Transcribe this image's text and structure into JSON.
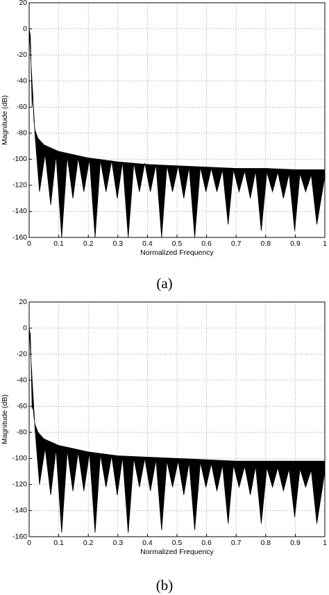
{
  "chart_data": [
    {
      "type": "area",
      "xlabel": "Normalized Frequency",
      "ylabel": "Magnitude (dB)",
      "caption": "(a)",
      "xlim": [
        0,
        1
      ],
      "ylim": [
        -160,
        20
      ],
      "grid": true,
      "xticks": [
        0,
        0.1,
        0.2,
        0.3,
        0.4,
        0.5,
        0.6,
        0.7,
        0.8,
        0.9,
        1
      ],
      "yticks": [
        20,
        0,
        -20,
        -40,
        -60,
        -80,
        -100,
        -120,
        -140,
        -160
      ],
      "series": [
        {
          "color": "#000000",
          "x": [
            0,
            0.004,
            0.008,
            0.01,
            0.012,
            0.016,
            0.02,
            0.03,
            0.05,
            0.1,
            0.2,
            0.3,
            0.4,
            0.5,
            0.6,
            0.7,
            0.8,
            0.9,
            1
          ],
          "values": [
            0,
            -5,
            -40,
            -60,
            -48,
            -70,
            -78,
            -84,
            -89,
            -94,
            -99,
            -102,
            -104,
            -105,
            -106,
            -107,
            -107,
            -108,
            -108
          ]
        },
        {
          "color": "#000000",
          "x": [
            0.02,
            0.035,
            0.054,
            0.073,
            0.091,
            0.11,
            0.129,
            0.148,
            0.166,
            0.185,
            0.204,
            0.223,
            0.241,
            0.26,
            0.279,
            0.298,
            0.316,
            0.335,
            0.354,
            0.373,
            0.391,
            0.41,
            0.429,
            0.448,
            0.466,
            0.485,
            0.504,
            0.523,
            0.541,
            0.56,
            0.579,
            0.598,
            0.616,
            0.635,
            0.654,
            0.673,
            0.691,
            0.71,
            0.729,
            0.748,
            0.766,
            0.785,
            0.804,
            0.823,
            0.841,
            0.86,
            0.879,
            0.898,
            0.916,
            0.935,
            0.954,
            0.973,
            1
          ],
          "values": [
            -82,
            -125,
            -96,
            -135,
            -97,
            -160,
            -98,
            -130,
            -99,
            -125,
            -100,
            -160,
            -101,
            -125,
            -101,
            -130,
            -102,
            -160,
            -103,
            -125,
            -103,
            -125,
            -104,
            -160,
            -105,
            -125,
            -105,
            -130,
            -106,
            -160,
            -106,
            -125,
            -107,
            -125,
            -108,
            -150,
            -108,
            -125,
            -109,
            -130,
            -109,
            -155,
            -110,
            -125,
            -110,
            -130,
            -111,
            -155,
            -111,
            -125,
            -112,
            -150,
            -113
          ]
        }
      ]
    },
    {
      "type": "area",
      "xlabel": "Normalized Frequency",
      "ylabel": "Magnitude (dB)",
      "caption": "(b)",
      "xlim": [
        0,
        1
      ],
      "ylim": [
        -160,
        20
      ],
      "grid": true,
      "xticks": [
        0,
        0.1,
        0.2,
        0.3,
        0.4,
        0.5,
        0.6,
        0.7,
        0.8,
        0.9,
        1
      ],
      "yticks": [
        20,
        0,
        -20,
        -40,
        -60,
        -80,
        -100,
        -120,
        -140,
        -160
      ],
      "series": [
        {
          "color": "#000000",
          "x": [
            0,
            0.004,
            0.008,
            0.01,
            0.012,
            0.016,
            0.02,
            0.03,
            0.05,
            0.1,
            0.2,
            0.3,
            0.4,
            0.5,
            0.6,
            0.7,
            0.8,
            0.9,
            1
          ],
          "values": [
            0,
            -5,
            -40,
            -62,
            -58,
            -68,
            -74,
            -80,
            -85,
            -90,
            -95,
            -98,
            -99,
            -100,
            -101,
            -102,
            -102,
            -102,
            -102
          ]
        },
        {
          "color": "#000000",
          "x": [
            0.02,
            0.035,
            0.054,
            0.073,
            0.091,
            0.11,
            0.129,
            0.148,
            0.166,
            0.185,
            0.204,
            0.223,
            0.241,
            0.26,
            0.279,
            0.298,
            0.316,
            0.335,
            0.354,
            0.373,
            0.391,
            0.41,
            0.429,
            0.448,
            0.466,
            0.485,
            0.504,
            0.523,
            0.541,
            0.56,
            0.579,
            0.598,
            0.616,
            0.635,
            0.654,
            0.673,
            0.691,
            0.71,
            0.729,
            0.748,
            0.766,
            0.785,
            0.804,
            0.823,
            0.841,
            0.86,
            0.879,
            0.898,
            0.916,
            0.935,
            0.954,
            0.973,
            1
          ],
          "values": [
            -78,
            -120,
            -92,
            -128,
            -93,
            -157,
            -94,
            -125,
            -95,
            -125,
            -96,
            -157,
            -97,
            -122,
            -98,
            -128,
            -99,
            -157,
            -100,
            -122,
            -100,
            -125,
            -101,
            -155,
            -102,
            -122,
            -102,
            -128,
            -103,
            -155,
            -103,
            -122,
            -104,
            -125,
            -105,
            -150,
            -105,
            -122,
            -106,
            -128,
            -106,
            -150,
            -107,
            -122,
            -107,
            -125,
            -108,
            -145,
            -108,
            -122,
            -109,
            -150,
            -110
          ]
        }
      ]
    }
  ]
}
